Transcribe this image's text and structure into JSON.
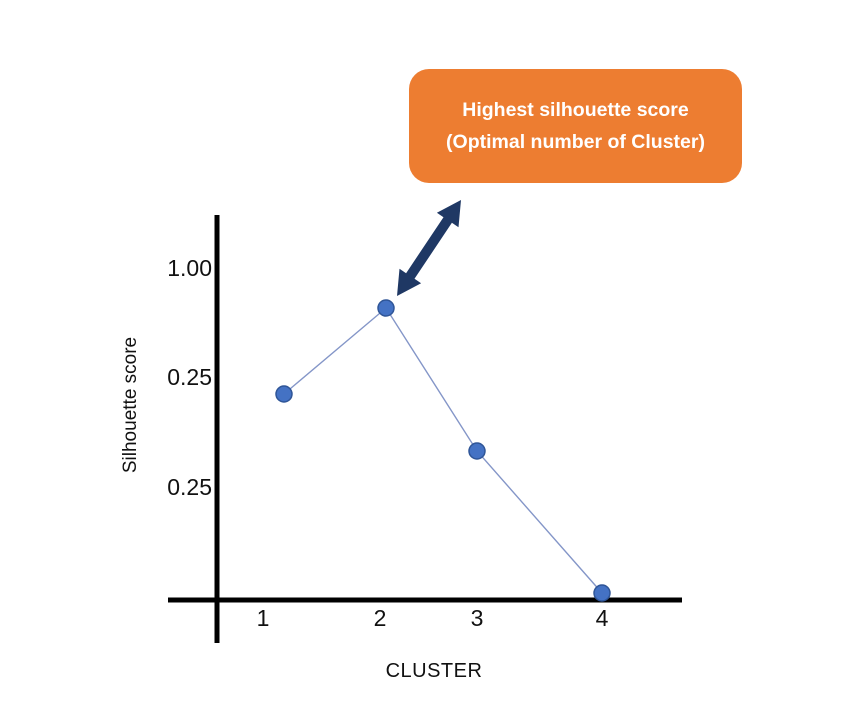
{
  "figure": {
    "callout": {
      "line1": "Highest silhouette score",
      "line2": "(Optimal number of Cluster)",
      "bg_color": "#ED7D31",
      "text_color": "#FFFFFF"
    },
    "arrow_color": "#1F3864",
    "arrow_icon": "double-headed-arrow",
    "axis_color": "#000000"
  },
  "chart_data": {
    "type": "line",
    "title": "",
    "xlabel": "CLUSTER",
    "ylabel": "Silhouette score",
    "categories": [
      "1",
      "2",
      "3",
      "4"
    ],
    "values": [
      0.62,
      0.88,
      0.45,
      0.02
    ],
    "x_tick_labels": [
      "1",
      "2",
      "3",
      "4"
    ],
    "y_tick_labels": [
      "1.00",
      "0.25",
      "0.25"
    ],
    "ylim": [
      0,
      1.15
    ],
    "grid": false,
    "legend": "none",
    "marker_color": "#4472C4",
    "marker_border_color": "#2F5597",
    "line_color": "#8496C8",
    "annotation_points_to_category": "2"
  }
}
